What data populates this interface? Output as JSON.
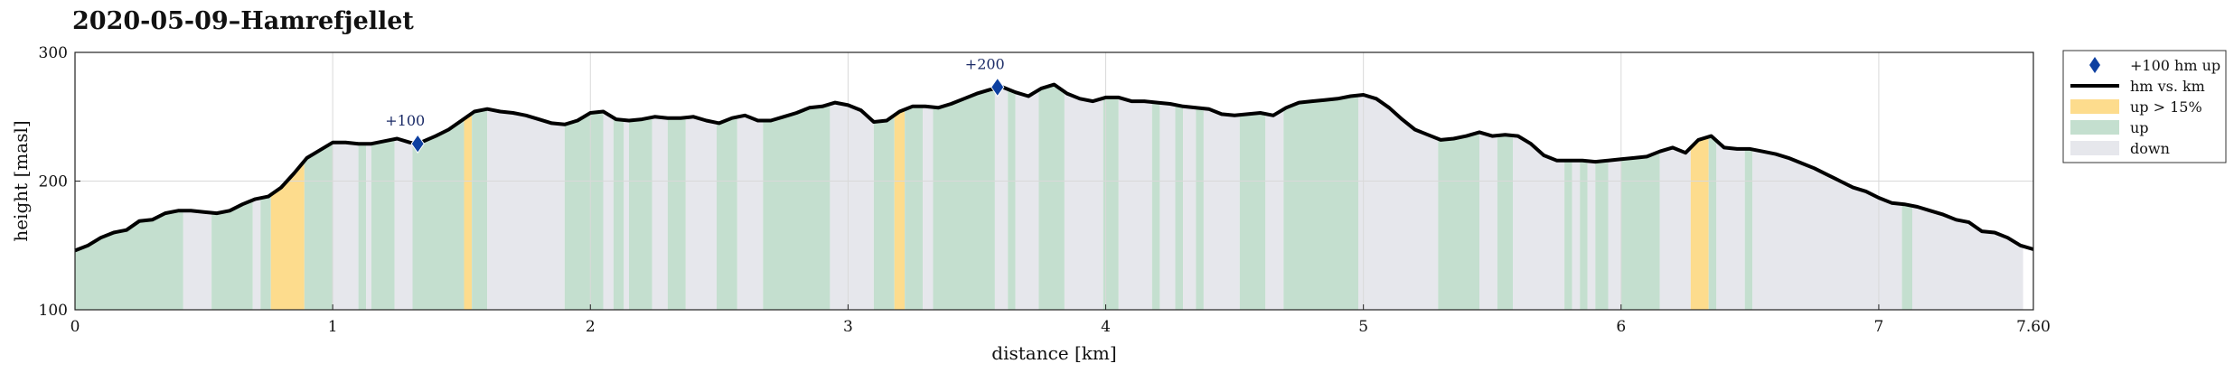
{
  "title": "2020-05-09–Hamrefjellet",
  "chart_data": {
    "type": "area",
    "xlabel": "distance [km]",
    "ylabel": "height [masl]",
    "xlim": [
      0,
      7.6
    ],
    "ylim": [
      100,
      300
    ],
    "x_ticks": [
      "0",
      "1",
      "2",
      "3",
      "4",
      "5",
      "6",
      "7",
      "7.60"
    ],
    "x_tick_values": [
      0,
      1,
      2,
      3,
      4,
      5,
      6,
      7,
      7.6
    ],
    "y_ticks": [
      "100",
      "200",
      "300"
    ],
    "y_tick_values": [
      100,
      200,
      300
    ],
    "grid": true,
    "colors": {
      "line": "#000000",
      "marker": "#0d3fa0",
      "steep": "#fddc8d",
      "up": "#c4dfcf",
      "down": "#e6e7ec"
    },
    "profile": {
      "x": [
        0,
        0.05,
        0.1,
        0.15,
        0.2,
        0.25,
        0.3,
        0.35,
        0.4,
        0.45,
        0.5,
        0.55,
        0.6,
        0.65,
        0.7,
        0.75,
        0.8,
        0.85,
        0.9,
        0.95,
        1.0,
        1.05,
        1.1,
        1.15,
        1.2,
        1.25,
        1.3,
        1.33,
        1.4,
        1.45,
        1.5,
        1.55,
        1.6,
        1.65,
        1.7,
        1.75,
        1.8,
        1.85,
        1.9,
        1.95,
        2.0,
        2.05,
        2.1,
        2.15,
        2.2,
        2.25,
        2.3,
        2.35,
        2.4,
        2.45,
        2.5,
        2.55,
        2.6,
        2.65,
        2.7,
        2.75,
        2.8,
        2.85,
        2.9,
        2.95,
        3.0,
        3.05,
        3.1,
        3.15,
        3.2,
        3.25,
        3.3,
        3.35,
        3.4,
        3.45,
        3.5,
        3.55,
        3.6,
        3.65,
        3.7,
        3.75,
        3.8,
        3.85,
        3.9,
        3.95,
        4.0,
        4.05,
        4.1,
        4.15,
        4.2,
        4.25,
        4.3,
        4.35,
        4.4,
        4.45,
        4.5,
        4.55,
        4.6,
        4.65,
        4.7,
        4.75,
        4.8,
        4.85,
        4.9,
        4.95,
        5.0,
        5.05,
        5.1,
        5.15,
        5.2,
        5.25,
        5.3,
        5.35,
        5.4,
        5.45,
        5.5,
        5.55,
        5.6,
        5.65,
        5.7,
        5.75,
        5.8,
        5.85,
        5.9,
        5.95,
        6.0,
        6.05,
        6.1,
        6.15,
        6.2,
        6.25,
        6.3,
        6.35,
        6.4,
        6.45,
        6.5,
        6.55,
        6.6,
        6.65,
        6.7,
        6.75,
        6.8,
        6.85,
        6.9,
        6.95,
        7.0,
        7.05,
        7.1,
        7.15,
        7.2,
        7.25,
        7.3,
        7.35,
        7.4,
        7.45,
        7.5,
        7.55,
        7.6
      ],
      "y": [
        146,
        150,
        156,
        160,
        162,
        169,
        170,
        175,
        177,
        177,
        176,
        175,
        177,
        182,
        186,
        188,
        195,
        206,
        218,
        224,
        230,
        230,
        229,
        229,
        231,
        233,
        230,
        229,
        235,
        240,
        247,
        254,
        256,
        254,
        253,
        251,
        248,
        245,
        244,
        247,
        253,
        254,
        248,
        247,
        248,
        250,
        249,
        249,
        250,
        247,
        245,
        249,
        251,
        247,
        247,
        250,
        253,
        257,
        258,
        261,
        259,
        255,
        246,
        247,
        254,
        258,
        258,
        257,
        260,
        264,
        268,
        271,
        273,
        269,
        266,
        272,
        275,
        268,
        264,
        262,
        265,
        265,
        262,
        262,
        261,
        260,
        258,
        257,
        256,
        252,
        251,
        252,
        253,
        251,
        257,
        261,
        262,
        263,
        264,
        266,
        267,
        264,
        257,
        248,
        240,
        236,
        232,
        233,
        235,
        238,
        235,
        236,
        235,
        229,
        220,
        216,
        216,
        216,
        215,
        216,
        217,
        218,
        219,
        223,
        226,
        222,
        232,
        235,
        226,
        225,
        225,
        223,
        221,
        218,
        214,
        210,
        205,
        200,
        195,
        192,
        187,
        183,
        182,
        180,
        177,
        174,
        170,
        168,
        161,
        160,
        156,
        150,
        147
      ]
    },
    "segments": [
      {
        "from": 0.0,
        "to": 0.42,
        "type": "up"
      },
      {
        "from": 0.42,
        "to": 0.53,
        "type": "down"
      },
      {
        "from": 0.53,
        "to": 0.69,
        "type": "up"
      },
      {
        "from": 0.69,
        "to": 0.72,
        "type": "down"
      },
      {
        "from": 0.72,
        "to": 0.76,
        "type": "up"
      },
      {
        "from": 0.76,
        "to": 0.89,
        "type": "up > 15%"
      },
      {
        "from": 0.89,
        "to": 1.0,
        "type": "up"
      },
      {
        "from": 1.0,
        "to": 1.1,
        "type": "down"
      },
      {
        "from": 1.1,
        "to": 1.13,
        "type": "up"
      },
      {
        "from": 1.13,
        "to": 1.15,
        "type": "down"
      },
      {
        "from": 1.15,
        "to": 1.24,
        "type": "up"
      },
      {
        "from": 1.24,
        "to": 1.31,
        "type": "down"
      },
      {
        "from": 1.31,
        "to": 1.51,
        "type": "up"
      },
      {
        "from": 1.51,
        "to": 1.54,
        "type": "up > 15%"
      },
      {
        "from": 1.54,
        "to": 1.6,
        "type": "up"
      },
      {
        "from": 1.6,
        "to": 1.9,
        "type": "down"
      },
      {
        "from": 1.9,
        "to": 2.05,
        "type": "up"
      },
      {
        "from": 2.05,
        "to": 2.09,
        "type": "down"
      },
      {
        "from": 2.09,
        "to": 2.13,
        "type": "up"
      },
      {
        "from": 2.13,
        "to": 2.15,
        "type": "down"
      },
      {
        "from": 2.15,
        "to": 2.24,
        "type": "up"
      },
      {
        "from": 2.24,
        "to": 2.3,
        "type": "down"
      },
      {
        "from": 2.3,
        "to": 2.37,
        "type": "up"
      },
      {
        "from": 2.37,
        "to": 2.49,
        "type": "down"
      },
      {
        "from": 2.49,
        "to": 2.57,
        "type": "up"
      },
      {
        "from": 2.57,
        "to": 2.67,
        "type": "down"
      },
      {
        "from": 2.67,
        "to": 2.93,
        "type": "up"
      },
      {
        "from": 2.93,
        "to": 3.1,
        "type": "down"
      },
      {
        "from": 3.1,
        "to": 3.18,
        "type": "up"
      },
      {
        "from": 3.18,
        "to": 3.22,
        "type": "up > 15%"
      },
      {
        "from": 3.22,
        "to": 3.29,
        "type": "up"
      },
      {
        "from": 3.29,
        "to": 3.33,
        "type": "down"
      },
      {
        "from": 3.33,
        "to": 3.57,
        "type": "up"
      },
      {
        "from": 3.57,
        "to": 3.62,
        "type": "down"
      },
      {
        "from": 3.62,
        "to": 3.65,
        "type": "up"
      },
      {
        "from": 3.65,
        "to": 3.74,
        "type": "down"
      },
      {
        "from": 3.74,
        "to": 3.84,
        "type": "up"
      },
      {
        "from": 3.84,
        "to": 3.99,
        "type": "down"
      },
      {
        "from": 3.99,
        "to": 4.05,
        "type": "up"
      },
      {
        "from": 4.05,
        "to": 4.18,
        "type": "down"
      },
      {
        "from": 4.18,
        "to": 4.21,
        "type": "up"
      },
      {
        "from": 4.21,
        "to": 4.27,
        "type": "down"
      },
      {
        "from": 4.27,
        "to": 4.3,
        "type": "up"
      },
      {
        "from": 4.3,
        "to": 4.35,
        "type": "down"
      },
      {
        "from": 4.35,
        "to": 4.38,
        "type": "up"
      },
      {
        "from": 4.38,
        "to": 4.52,
        "type": "down"
      },
      {
        "from": 4.52,
        "to": 4.62,
        "type": "up"
      },
      {
        "from": 4.62,
        "to": 4.69,
        "type": "down"
      },
      {
        "from": 4.69,
        "to": 4.98,
        "type": "up"
      },
      {
        "from": 4.98,
        "to": 5.29,
        "type": "down"
      },
      {
        "from": 5.29,
        "to": 5.45,
        "type": "up"
      },
      {
        "from": 5.45,
        "to": 5.52,
        "type": "down"
      },
      {
        "from": 5.52,
        "to": 5.58,
        "type": "up"
      },
      {
        "from": 5.58,
        "to": 5.78,
        "type": "down"
      },
      {
        "from": 5.78,
        "to": 5.81,
        "type": "up"
      },
      {
        "from": 5.81,
        "to": 5.84,
        "type": "down"
      },
      {
        "from": 5.84,
        "to": 5.87,
        "type": "up"
      },
      {
        "from": 5.87,
        "to": 5.9,
        "type": "down"
      },
      {
        "from": 5.9,
        "to": 5.95,
        "type": "up"
      },
      {
        "from": 5.95,
        "to": 6.0,
        "type": "down"
      },
      {
        "from": 6.0,
        "to": 6.15,
        "type": "up"
      },
      {
        "from": 6.15,
        "to": 6.27,
        "type": "down"
      },
      {
        "from": 6.27,
        "to": 6.34,
        "type": "up > 15%"
      },
      {
        "from": 6.34,
        "to": 6.37,
        "type": "up"
      },
      {
        "from": 6.37,
        "to": 6.48,
        "type": "down"
      },
      {
        "from": 6.48,
        "to": 6.51,
        "type": "up"
      },
      {
        "from": 6.51,
        "to": 7.09,
        "type": "down"
      },
      {
        "from": 7.09,
        "to": 7.13,
        "type": "up"
      },
      {
        "from": 7.13,
        "to": 7.56,
        "type": "down"
      }
    ],
    "markers": [
      {
        "x": 1.33,
        "y": 229,
        "label": "+100"
      },
      {
        "x": 3.58,
        "y": 273,
        "label": "+200"
      }
    ],
    "legend": {
      "position": "outside-right",
      "entries": [
        {
          "label": "+100 hm up",
          "kind": "marker"
        },
        {
          "label": "hm vs. km",
          "kind": "line"
        },
        {
          "label": "up > 15%",
          "kind": "steep"
        },
        {
          "label": "up",
          "kind": "up"
        },
        {
          "label": "down",
          "kind": "down"
        }
      ]
    }
  }
}
